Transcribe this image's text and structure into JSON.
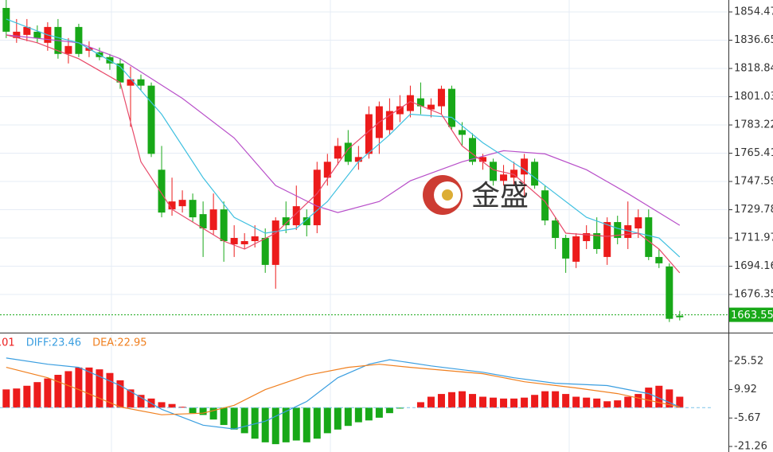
{
  "chart_data": [
    {
      "type": "candlestick",
      "watermark": "金盛",
      "up_color": "#ec1b1b",
      "down_color": "#18a818",
      "xlim": [
        -0.6,
        69.7
      ],
      "ylim": [
        1652.3,
        1862.0
      ],
      "yticks": [
        1854.47,
        1836.65,
        1818.84,
        1801.03,
        1783.22,
        1765.41,
        1747.59,
        1729.78,
        1711.97,
        1694.16,
        1676.35
      ],
      "grid": true,
      "last_price": 1663.55,
      "last_price_color": "#18a818",
      "open": [
        1857,
        1838,
        1840,
        1842,
        1835,
        1845,
        1828,
        1845,
        1830,
        1829,
        1826,
        1822,
        1808,
        1812,
        1808,
        1755,
        1730,
        1732,
        1736,
        1727,
        1717,
        1730,
        1708,
        1708,
        1710,
        1712,
        1695,
        1725,
        1720,
        1725,
        1720,
        1750,
        1762,
        1772,
        1760,
        1765,
        1775,
        1780,
        1790,
        1792,
        1800,
        1793,
        1795,
        1806,
        1780,
        1775,
        1760,
        1760,
        1748,
        1750,
        1752,
        1760,
        1742,
        1723,
        1712,
        1697,
        1710,
        1715,
        1700,
        1722,
        1712,
        1718,
        1725,
        1700,
        1694,
        1663
      ],
      "high": [
        1862,
        1850,
        1850,
        1846,
        1848,
        1850,
        1838,
        1847,
        1836,
        1832,
        1828,
        1825,
        1820,
        1815,
        1810,
        1770,
        1750,
        1742,
        1740,
        1735,
        1740,
        1735,
        1720,
        1715,
        1720,
        1718,
        1725,
        1735,
        1745,
        1730,
        1760,
        1765,
        1775,
        1780,
        1770,
        1795,
        1798,
        1800,
        1802,
        1808,
        1810,
        1800,
        1808,
        1808,
        1785,
        1778,
        1765,
        1762,
        1758,
        1760,
        1765,
        1762,
        1745,
        1725,
        1714,
        1715,
        1720,
        1725,
        1725,
        1726,
        1735,
        1730,
        1730,
        1705,
        1696,
        1666
      ],
      "low": [
        1838,
        1835,
        1836,
        1835,
        1830,
        1825,
        1822,
        1826,
        1826,
        1824,
        1818,
        1806,
        1782,
        1805,
        1763,
        1725,
        1726,
        1728,
        1722,
        1700,
        1714,
        1697,
        1700,
        1705,
        1706,
        1690,
        1680,
        1715,
        1717,
        1713,
        1715,
        1745,
        1758,
        1758,
        1755,
        1762,
        1765,
        1777,
        1785,
        1788,
        1790,
        1788,
        1790,
        1780,
        1770,
        1758,
        1755,
        1745,
        1745,
        1745,
        1738,
        1743,
        1720,
        1705,
        1690,
        1693,
        1705,
        1702,
        1695,
        1708,
        1705,
        1712,
        1698,
        1693,
        1659,
        1660
      ],
      "close": [
        1842,
        1842,
        1845,
        1838,
        1845,
        1828,
        1833,
        1828,
        1832,
        1826,
        1822,
        1810,
        1812,
        1808,
        1765,
        1728,
        1735,
        1736,
        1725,
        1718,
        1730,
        1710,
        1712,
        1710,
        1713,
        1695,
        1723,
        1720,
        1732,
        1720,
        1755,
        1760,
        1770,
        1760,
        1763,
        1790,
        1795,
        1792,
        1795,
        1802,
        1795,
        1796,
        1806,
        1782,
        1777,
        1760,
        1763,
        1748,
        1752,
        1755,
        1762,
        1745,
        1723,
        1712,
        1699,
        1713,
        1715,
        1705,
        1722,
        1712,
        1720,
        1725,
        1700,
        1696,
        1661,
        1662
      ],
      "lines": [
        {
          "color": "#b84fc9",
          "x": [
            0,
            7,
            11,
            17,
            22,
            26,
            30,
            32,
            36,
            39,
            44,
            48,
            52,
            56,
            60,
            65
          ],
          "values": [
            1840,
            1835,
            1825,
            1800,
            1775,
            1745,
            1732,
            1728,
            1735,
            1748,
            1760,
            1767,
            1765,
            1755,
            1740,
            1720
          ]
        },
        {
          "color": "#3fc0e0",
          "x": [
            0,
            4,
            7,
            11,
            15,
            19,
            22,
            25,
            28,
            31,
            34,
            37,
            39,
            43,
            46,
            50,
            53,
            56,
            59,
            63,
            65
          ],
          "values": [
            1850,
            1840,
            1835,
            1820,
            1790,
            1750,
            1725,
            1715,
            1718,
            1735,
            1760,
            1777,
            1790,
            1788,
            1772,
            1755,
            1740,
            1725,
            1718,
            1712,
            1700
          ]
        },
        {
          "color": "#e84a6a",
          "x": [
            0,
            3,
            7,
            11,
            13,
            16,
            21,
            23,
            26,
            30,
            33,
            36,
            39,
            42,
            44,
            47,
            49,
            52,
            54,
            58,
            61,
            63,
            65
          ],
          "values": [
            1840,
            1835,
            1825,
            1810,
            1760,
            1730,
            1710,
            1705,
            1715,
            1740,
            1768,
            1785,
            1798,
            1790,
            1770,
            1755,
            1752,
            1735,
            1715,
            1713,
            1715,
            1705,
            1690
          ]
        }
      ]
    },
    {
      "type": "macd",
      "legend": [
        {
          "text": ".01",
          "color": "#ec1b1b"
        },
        {
          "text": "DIFF:23.46",
          "color": "#3a9ee0"
        },
        {
          "text": "DEA:22.95",
          "color": "#f08020"
        }
      ],
      "xlim": [
        -0.6,
        69.7
      ],
      "ylim": [
        -24.3,
        40.25
      ],
      "yticks": [
        25.52,
        9.92,
        -5.67,
        -21.26
      ],
      "pos_color": "#ec1b1b",
      "neg_color": "#18a818",
      "zero_color": "#7cc4e8",
      "values": [
        10,
        10.5,
        12,
        14,
        16,
        18,
        20,
        22,
        22,
        21,
        19,
        15,
        10,
        7,
        5,
        3,
        2,
        0.5,
        -3,
        -4,
        -6.5,
        -9.5,
        -12,
        -14,
        -17,
        -19,
        -20,
        -19,
        -18,
        -19,
        -17,
        -14,
        -12,
        -10,
        -8,
        -7,
        -5.5,
        -3,
        -0.5,
        0,
        3,
        6,
        7.5,
        8.5,
        9,
        7.5,
        6,
        5.5,
        5,
        5,
        5.5,
        7,
        9,
        9,
        7.5,
        6,
        5.5,
        5,
        3.5,
        4,
        6,
        7.5,
        11,
        12,
        10,
        6
      ],
      "lines": [
        {
          "color": "#3a9ee0",
          "x": [
            0,
            4,
            7,
            11,
            15,
            19,
            22,
            25,
            29,
            32,
            35,
            37,
            41,
            46,
            49,
            53,
            58,
            62,
            65
          ],
          "values": [
            27.2,
            23.8,
            22.1,
            12.1,
            -0.9,
            -9.6,
            -11.7,
            -7.4,
            3.4,
            16.4,
            23.8,
            26.3,
            22.9,
            19.4,
            16.4,
            13.4,
            12.1,
            7.7,
            0.4
          ]
        },
        {
          "color": "#f08020",
          "x": [
            0,
            4,
            7,
            11,
            15,
            19,
            22,
            25,
            29,
            33,
            36,
            39,
            46,
            50,
            55,
            59,
            65
          ],
          "values": [
            22.1,
            16.4,
            9.9,
            0.4,
            -3.9,
            -3,
            1.3,
            9.9,
            17.7,
            22.1,
            23.8,
            22.1,
            18.6,
            14.2,
            10.8,
            7.7,
            0.4
          ]
        }
      ]
    }
  ]
}
